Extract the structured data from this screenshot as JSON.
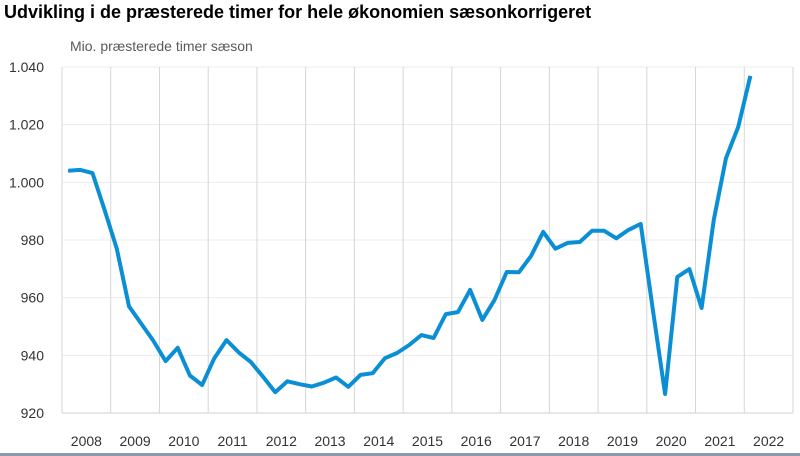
{
  "chart_data": {
    "type": "line",
    "title": "Udvikling i de præsterede timer for hele økonomien sæsonkorrigeret",
    "ylabel": "Mio. præsterede timer sæson",
    "xlabel": "",
    "frequency": "quarterly",
    "start": "2008Q1",
    "end": "2022Q1",
    "x_tick_labels": [
      "2008",
      "2009",
      "2010",
      "2011",
      "2012",
      "2013",
      "2014",
      "2015",
      "2016",
      "2017",
      "2018",
      "2019",
      "2020",
      "2021",
      "2022"
    ],
    "y_ticks": [
      920,
      940,
      960,
      980,
      1000,
      1020,
      1040
    ],
    "y_tick_labels": [
      "920",
      "940",
      "960",
      "980",
      "1.000",
      "1.020",
      "1.040"
    ],
    "ylim": [
      920,
      1040
    ],
    "grid": true,
    "line_color": "#0b8fd4",
    "series": [
      {
        "values": [
          1004,
          1004.3,
          1003.2,
          990.4,
          977,
          957,
          951,
          945,
          938,
          942.6,
          933,
          929.7,
          939,
          945.3,
          941,
          937.7,
          932.6,
          927.2,
          931,
          930,
          929.2,
          930.5,
          932.3,
          929.1,
          933.2,
          933.8,
          939,
          940.8,
          943.6,
          947,
          946,
          954.3,
          955,
          962.7,
          952.3,
          959.2,
          968.9,
          968.8,
          974.5,
          982.8,
          977,
          979,
          979.3,
          983.2,
          983.2,
          980.6,
          983.5,
          985.6,
          955.7,
          926.6,
          967.2,
          969.9,
          956.4,
          987,
          1008.4,
          1019.2,
          1036.9
        ]
      }
    ]
  }
}
